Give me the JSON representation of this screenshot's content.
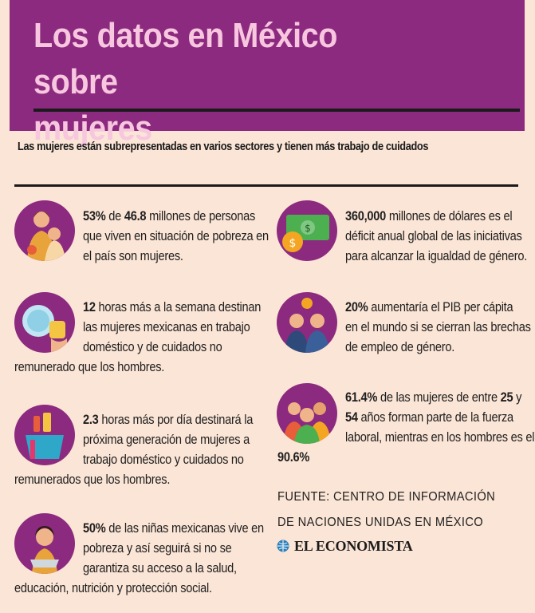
{
  "header": {
    "title_line1": "Los datos en México sobre",
    "title_line2": "mujeres"
  },
  "subtitle": "Las mujeres están subrepresentadas en varios sectores y tienen más trabajo de cuidados",
  "facts": [
    {
      "icon": "mother-child-icon",
      "pct": "53%",
      "t1": " de ",
      "num": "46.8",
      "t2": " millones de personas",
      "l2": "que viven en situación de pobreza en",
      "l3": "el país son mujeres."
    },
    {
      "icon": "cleaning-sponge-icon",
      "num": "12",
      "t1": " horas más a la semana destinan",
      "l2": "las mujeres mexicanas en trabajo",
      "l3": "doméstico y de cuidados no",
      "l4": "remunerado que los hombres."
    },
    {
      "icon": "cleaning-bucket-icon",
      "num": "2.3",
      "t1": " horas más por día destinará la",
      "l2": "próxima generación de mujeres a",
      "l3": "trabajo doméstico y cuidados no",
      "l4": "remunerados que los hombres."
    },
    {
      "icon": "girl-cooking-icon",
      "pct": "50%",
      "t1": " de las niñas mexicanas vive en",
      "l2": "pobreza y así seguirá si no se",
      "l3": "garantiza su acceso a la salud,",
      "l4": "educación, nutrición y protección social."
    },
    {
      "icon": "money-icon",
      "num": "360,000",
      "t1": " millones de dólares es el",
      "l2": "déficit anual global de las iniciativas",
      "l3": "para alcanzar la igualdad de género."
    },
    {
      "icon": "business-people-icon",
      "pct": "20%",
      "t1": " aumentaría el PIB per cápita",
      "l2": "en el mundo si se cierran las brechas",
      "l3": "de empleo de género."
    },
    {
      "icon": "women-group-icon",
      "pct": "61.4%",
      "t1": " de las mujeres de entre ",
      "n2": "25",
      "t2": " y",
      "n3": "54",
      "l2": " años forman parte de la fuerza",
      "l3": "laboral, mientras en los hombres es el",
      "l4": "90.6%"
    }
  ],
  "source": {
    "line1": "FUENTE: CENTRO DE INFORMACIÓN",
    "line2": "DE NACIONES UNIDAS EN MÉXICO"
  },
  "brand": "EL ECONOMISTA",
  "colors": {
    "purple": "#8c2a7f",
    "pink_title": "#f7c6df",
    "background": "#fbe5d6"
  }
}
